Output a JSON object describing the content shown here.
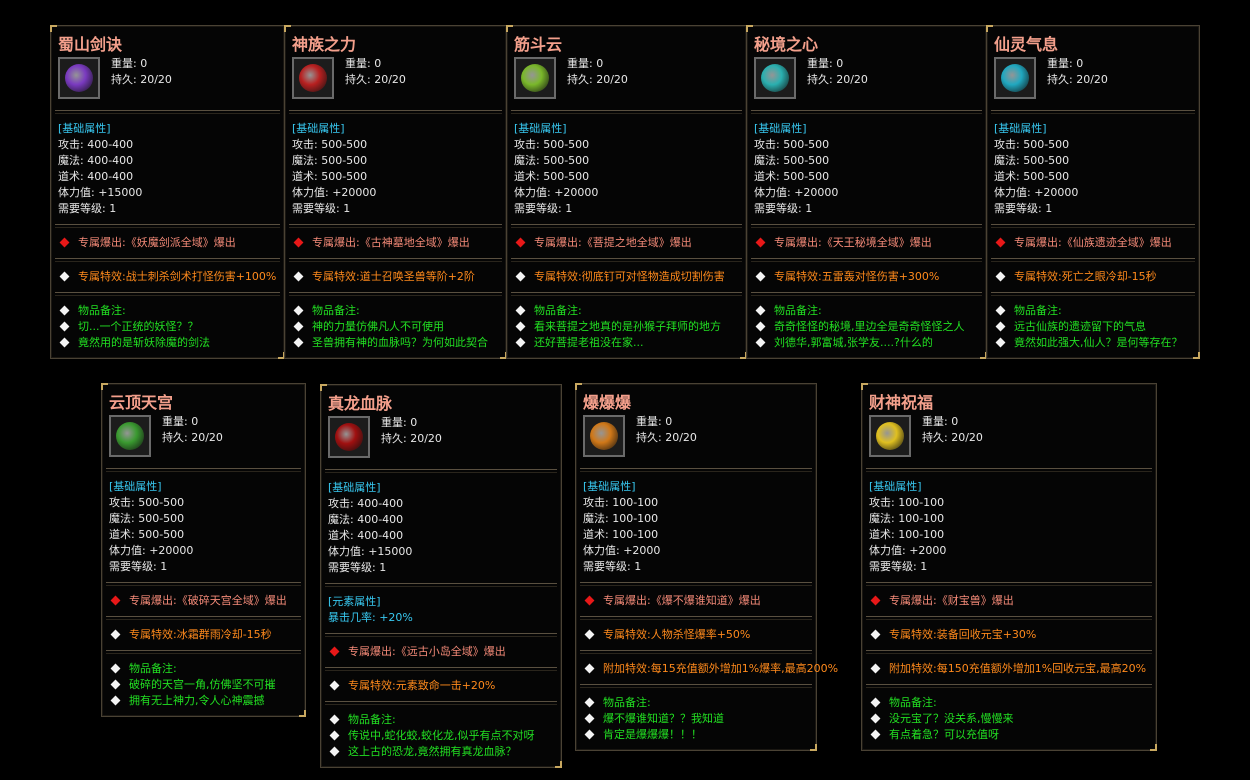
{
  "labels": {
    "weight": "重量: ",
    "durability": "持久: "
  },
  "cards": [
    {
      "title": "蜀山剑诀",
      "icon": "purple-sword-icon",
      "icon_color": "#7a3ac0",
      "weight": "0",
      "durability": "20/20",
      "base_label": "[基础属性]",
      "stats": [
        "攻击: 400-400",
        "魔法: 400-400",
        "道术: 400-400",
        "体力值: +15000",
        "需要等级: 1"
      ],
      "drop": "专属爆出:《妖魔剑派全域》爆出",
      "effect": "专属特效:战士刺杀剑术打怪伤害+100%",
      "notes": [
        "物品备注:",
        "切...一个正统的妖怪？？",
        "竟然用的是斩妖除魔的剑法"
      ]
    },
    {
      "title": "神族之力",
      "icon": "red-gold-medallion-icon",
      "icon_color": "#b82020",
      "weight": "0",
      "durability": "20/20",
      "base_label": "[基础属性]",
      "stats": [
        "攻击: 500-500",
        "魔法: 500-500",
        "道术: 500-500",
        "体力值: +20000",
        "需要等级: 1"
      ],
      "drop": "专属爆出:《古神墓地全域》爆出",
      "effect": "专属特效:道士召唤圣兽等阶+2阶",
      "notes": [
        "物品备注:",
        "神的力量仿佛凡人不可使用",
        "圣兽拥有神的血脉吗？为何如此契合"
      ]
    },
    {
      "title": "筋斗云",
      "icon": "green-swirl-gem-icon",
      "icon_color": "#7ab82a",
      "weight": "0",
      "durability": "20/20",
      "base_label": "[基础属性]",
      "stats": [
        "攻击: 500-500",
        "魔法: 500-500",
        "道术: 500-500",
        "体力值: +20000",
        "需要等级: 1"
      ],
      "drop": "专属爆出:《菩提之地全域》爆出",
      "effect": "专属特效:彻底钉可对怪物造成切割伤害",
      "notes": [
        "物品备注:",
        "看来菩提之地真的是孙猴子拜师的地方",
        "还好菩提老祖没在家..."
      ]
    },
    {
      "title": "秘境之心",
      "icon": "cyan-swirl-gem-icon",
      "icon_color": "#2ab0b0",
      "weight": "0",
      "durability": "20/20",
      "base_label": "[基础属性]",
      "stats": [
        "攻击: 500-500",
        "魔法: 500-500",
        "道术: 500-500",
        "体力值: +20000",
        "需要等级: 1"
      ],
      "drop": "专属爆出:《天王秘境全域》爆出",
      "effect": "专属特效:五雷轰对怪伤害+300%",
      "notes": [
        "物品备注:",
        "奇奇怪怪的秘境,里边全是奇奇怪怪之人",
        "刘德华,郭富城,张学友....?什么的"
      ]
    },
    {
      "title": "仙灵气息",
      "icon": "cyan-cloud-gem-icon",
      "icon_color": "#20a8c0",
      "weight": "0",
      "durability": "20/20",
      "base_label": "[基础属性]",
      "stats": [
        "攻击: 500-500",
        "魔法: 500-500",
        "道术: 500-500",
        "体力值: +20000",
        "需要等级: 1"
      ],
      "drop": "专属爆出:《仙族遗迹全域》爆出",
      "effect": "专属特效:死亡之眼冷却-15秒",
      "notes": [
        "物品备注:",
        "远古仙族的遗迹留下的气息",
        "竟然如此强大,仙人？是何等存在？"
      ]
    },
    {
      "title": "云顶天宫",
      "icon": "green-leaf-gem-icon",
      "icon_color": "#3a9a30",
      "weight": "0",
      "durability": "20/20",
      "base_label": "[基础属性]",
      "stats": [
        "攻击: 500-500",
        "魔法: 500-500",
        "道术: 500-500",
        "体力值: +20000",
        "需要等级: 1"
      ],
      "drop": "专属爆出:《破碎天宫全域》爆出",
      "effect": "专属特效:冰霜群雨冷却-15秒",
      "notes": [
        "物品备注:",
        "破碎的天宫一角,仿佛坚不可摧",
        "拥有无上神力,令人心神震撼"
      ]
    },
    {
      "title": "真龙血脉",
      "icon": "red-dragon-orb-icon",
      "icon_color": "#a01010",
      "weight": "0",
      "durability": "20/20",
      "base_label": "[基础属性]",
      "stats": [
        "攻击: 400-400",
        "魔法: 400-400",
        "道术: 400-400",
        "体力值: +15000",
        "需要等级: 1"
      ],
      "element_label": "[元素属性]",
      "element_stat": "暴击几率: +20%",
      "drop": "专属爆出:《远古小岛全域》爆出",
      "effect": "专属特效:元素致命一击+20%",
      "notes": [
        "物品备注:",
        "传说中,蛇化蛟,蛟化龙,似乎有点不对呀",
        "这上古的恐龙,竟然拥有真龙血脉？"
      ]
    },
    {
      "title": "爆爆爆",
      "icon": "orange-scroll-icon",
      "icon_color": "#d07818",
      "weight": "0",
      "durability": "20/20",
      "base_label": "[基础属性]",
      "stats": [
        "攻击: 100-100",
        "魔法: 100-100",
        "道术: 100-100",
        "体力值: +2000",
        "需要等级: 1"
      ],
      "drop": "专属爆出:《爆不爆谁知道》爆出",
      "effect": "专属特效:人物杀怪爆率+50%",
      "extra_effect": "附加特效:每15充值额外增加1%爆率,最高200%",
      "notes": [
        "物品备注:",
        "爆不爆谁知道？？我知道",
        "肯定是爆爆爆！！！"
      ]
    },
    {
      "title": "财神祝福",
      "icon": "gold-ingot-icon",
      "icon_color": "#e0c020",
      "weight": "0",
      "durability": "20/20",
      "base_label": "[基础属性]",
      "stats": [
        "攻击: 100-100",
        "魔法: 100-100",
        "道术: 100-100",
        "体力值: +2000",
        "需要等级: 1"
      ],
      "drop": "专属爆出:《财宝兽》爆出",
      "effect": "专属特效:装备回收元宝+30%",
      "extra_effect": "附加特效:每150充值额外增加1%回收元宝,最高20%",
      "notes": [
        "物品备注:",
        "没元宝了？没关系,慢慢来",
        "有点着急？可以充值呀"
      ]
    }
  ]
}
